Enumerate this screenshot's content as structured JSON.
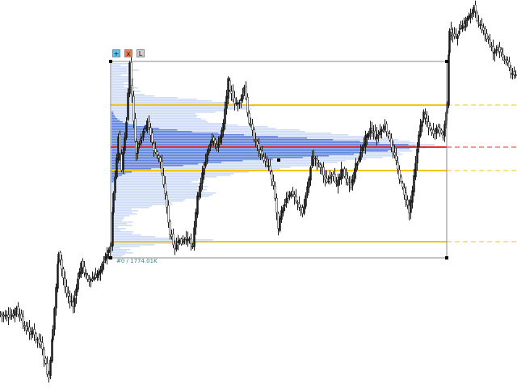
{
  "controls": {
    "plus_label": "+",
    "close_label": "x",
    "lock_label": "L"
  },
  "range_label": "#0 / 1774.01K",
  "colors": {
    "candles": "#1a1a1a",
    "profile_outer": "#cfdcf5",
    "profile_inner": "#4d74d6",
    "poc_line": "#e8322d",
    "value_area_lines": "#f2c51c",
    "box_border": "#8a8a8a",
    "label": "#2f8f88"
  }
}
